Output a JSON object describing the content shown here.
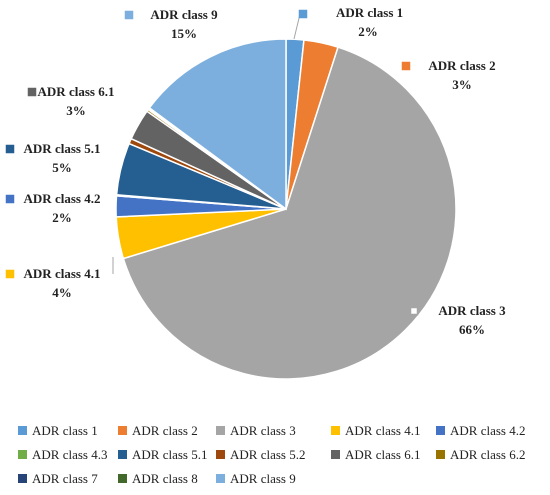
{
  "chart_data": {
    "type": "pie",
    "title": "",
    "slices": [
      {
        "label": "ADR class 1",
        "value": 1.7,
        "pct_label": "2%",
        "color": "#5b9bd5"
      },
      {
        "label": "ADR class 2",
        "value": 3.3,
        "pct_label": "3%",
        "color": "#ed7d31"
      },
      {
        "label": "ADR class 3",
        "value": 66,
        "pct_label": "66%",
        "color": "#a5a5a5"
      },
      {
        "label": "ADR class 4.1",
        "value": 4,
        "pct_label": "4%",
        "color": "#ffc000"
      },
      {
        "label": "ADR class 4.2",
        "value": 2,
        "pct_label": "2%",
        "color": "#4472c4"
      },
      {
        "label": "ADR class 4.3",
        "value": 0.1,
        "pct_label": "",
        "color": "#70ad47"
      },
      {
        "label": "ADR class 5.1",
        "value": 5,
        "pct_label": "5%",
        "color": "#255e91"
      },
      {
        "label": "ADR class 5.2",
        "value": 0.5,
        "pct_label": "",
        "color": "#9e480e"
      },
      {
        "label": "ADR class 6.1",
        "value": 3,
        "pct_label": "3%",
        "color": "#636363"
      },
      {
        "label": "ADR class 6.2",
        "value": 0.2,
        "pct_label": "",
        "color": "#997300"
      },
      {
        "label": "ADR class 7",
        "value": 0.1,
        "pct_label": "",
        "color": "#264478"
      },
      {
        "label": "ADR class 8",
        "value": 0.1,
        "pct_label": "",
        "color": "#43682b"
      },
      {
        "label": "ADR class 9",
        "value": 15,
        "pct_label": "15%",
        "color": "#7cafdd"
      }
    ],
    "legend": {
      "position": "bottom",
      "rows": [
        [
          "ADR class 1",
          "ADR class 2",
          "ADR class 3",
          "ADR class 4.1",
          "ADR class 4.2"
        ],
        [
          "ADR class 4.3",
          "ADR class 5.1",
          "ADR class 5.2",
          "ADR class 6.1",
          "ADR class 6.2"
        ],
        [
          "ADR class 7",
          "ADR class 8",
          "ADR class 9"
        ]
      ]
    }
  }
}
